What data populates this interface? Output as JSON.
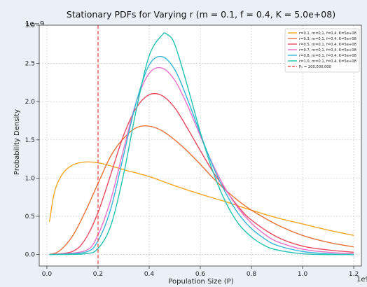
{
  "chart_data": {
    "type": "line",
    "title": "Stationary PDFs for Varying r (m = 0.1, f = 0.4, K = 5.0e+08)",
    "xlabel": "Population Size (P)",
    "ylabel": "Probability Density",
    "x_multiplier": "1e9",
    "y_multiplier": "1e−9",
    "xlim": [
      -0.03,
      1.23
    ],
    "ylim": [
      -0.15,
      3.0
    ],
    "x_ticks": [
      0.0,
      0.2,
      0.4,
      0.6,
      0.8,
      1.0,
      1.2
    ],
    "x_tick_labels": [
      "0.0",
      "0.2",
      "0.4",
      "0.6",
      "0.8",
      "1.0",
      "1.2"
    ],
    "y_ticks": [
      0.0,
      0.5,
      1.0,
      1.5,
      2.0,
      2.5,
      3.0
    ],
    "y_tick_labels": [
      "0.0",
      "0.5",
      "1.0",
      "1.5",
      "2.0",
      "2.5",
      "3.0"
    ],
    "grid": true,
    "legend_position": "top-right",
    "vline": {
      "x": 0.2,
      "label": "P₀ = 200,000,000",
      "color": "#e8534a"
    },
    "series": [
      {
        "name": "r=0.1, m=0.1, f=0.4, K=5e+08",
        "color": "#f5a623",
        "x": [
          0.01,
          0.03,
          0.06,
          0.1,
          0.15,
          0.2,
          0.25,
          0.3,
          0.4,
          0.5,
          0.6,
          0.7,
          0.8,
          0.9,
          1.0,
          1.1,
          1.2
        ],
        "y": [
          0.43,
          0.82,
          1.05,
          1.17,
          1.21,
          1.2,
          1.16,
          1.11,
          1.02,
          0.9,
          0.79,
          0.69,
          0.58,
          0.48,
          0.4,
          0.32,
          0.25
        ]
      },
      {
        "name": "r=0.3, m=0.1, f=0.4, K=5e+08",
        "color": "#e8733a",
        "x": [
          0.01,
          0.05,
          0.1,
          0.15,
          0.2,
          0.25,
          0.3,
          0.35,
          0.4,
          0.45,
          0.5,
          0.55,
          0.6,
          0.65,
          0.7,
          0.75,
          0.8,
          0.9,
          1.0,
          1.1,
          1.2
        ],
        "y": [
          0.0,
          0.05,
          0.24,
          0.56,
          0.93,
          1.29,
          1.52,
          1.66,
          1.68,
          1.62,
          1.5,
          1.35,
          1.18,
          1.0,
          0.84,
          0.7,
          0.58,
          0.39,
          0.25,
          0.16,
          0.1
        ]
      },
      {
        "name": "r=0.5, m=0.1, f=0.4, K=5e+08",
        "color": "#e84a5f",
        "x": [
          0.01,
          0.1,
          0.15,
          0.2,
          0.25,
          0.3,
          0.35,
          0.4,
          0.45,
          0.5,
          0.55,
          0.6,
          0.65,
          0.7,
          0.75,
          0.8,
          0.9,
          1.0,
          1.1,
          1.2
        ],
        "y": [
          0.0,
          0.04,
          0.2,
          0.55,
          1.05,
          1.56,
          1.92,
          2.09,
          2.08,
          1.92,
          1.65,
          1.36,
          1.08,
          0.84,
          0.62,
          0.45,
          0.23,
          0.11,
          0.06,
          0.03
        ]
      },
      {
        "name": "r=0.7, m=0.1, f=0.4, K=5e+08",
        "color": "#e870c8",
        "x": [
          0.01,
          0.15,
          0.2,
          0.25,
          0.3,
          0.35,
          0.4,
          0.45,
          0.5,
          0.55,
          0.6,
          0.65,
          0.7,
          0.75,
          0.8,
          0.85,
          0.9,
          1.0,
          1.1,
          1.2
        ],
        "y": [
          0.0,
          0.05,
          0.26,
          0.72,
          1.38,
          2.0,
          2.37,
          2.44,
          2.28,
          1.95,
          1.55,
          1.17,
          0.85,
          0.6,
          0.41,
          0.27,
          0.17,
          0.07,
          0.03,
          0.01
        ]
      },
      {
        "name": "r=0.8, m=0.1, f=0.4, K=5e+08",
        "color": "#33b5d6",
        "x": [
          0.01,
          0.15,
          0.2,
          0.25,
          0.3,
          0.35,
          0.4,
          0.45,
          0.5,
          0.55,
          0.6,
          0.65,
          0.7,
          0.75,
          0.8,
          0.85,
          0.9,
          1.0,
          1.1,
          1.2
        ],
        "y": [
          0.0,
          0.03,
          0.18,
          0.6,
          1.3,
          2.0,
          2.48,
          2.59,
          2.42,
          2.03,
          1.58,
          1.15,
          0.8,
          0.53,
          0.34,
          0.21,
          0.12,
          0.04,
          0.01,
          0.0
        ]
      },
      {
        "name": "r=1.0, m=0.1, f=0.4, K=5e+08",
        "color": "#22c2b2",
        "x": [
          0.01,
          0.15,
          0.2,
          0.25,
          0.3,
          0.35,
          0.4,
          0.45,
          0.47,
          0.5,
          0.55,
          0.6,
          0.65,
          0.7,
          0.75,
          0.8,
          0.85,
          0.9,
          1.0,
          1.1,
          1.2
        ],
        "y": [
          0.0,
          0.01,
          0.08,
          0.38,
          1.05,
          1.9,
          2.6,
          2.87,
          2.88,
          2.75,
          2.2,
          1.6,
          1.08,
          0.68,
          0.4,
          0.23,
          0.12,
          0.06,
          0.01,
          0.0,
          0.0
        ]
      }
    ]
  }
}
